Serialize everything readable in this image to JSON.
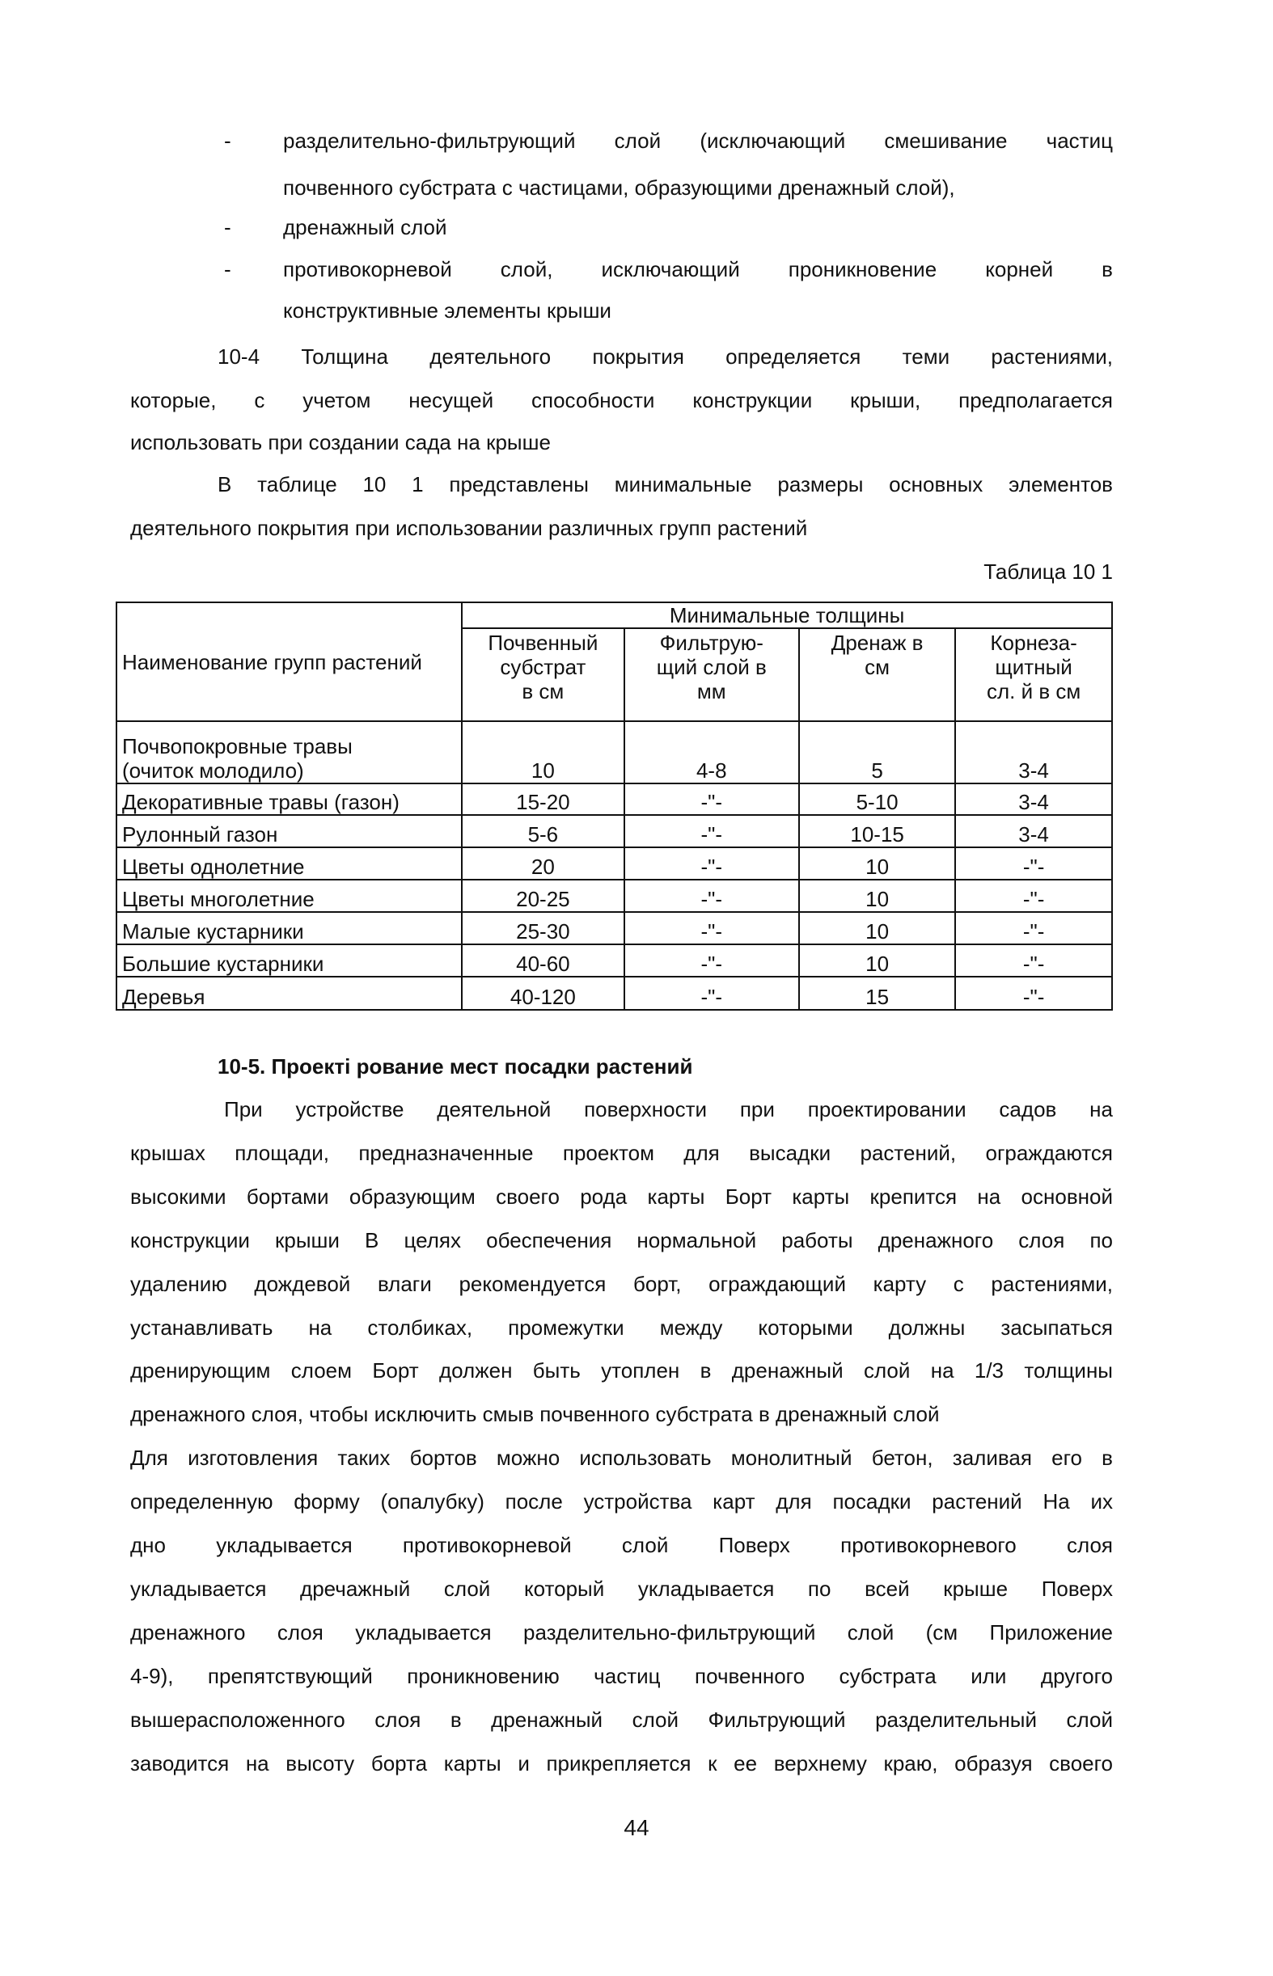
{
  "bullets": [
    {
      "lines": [
        "разделительно-фильтрующий слой (исключающий смешивание частиц",
        "почвенного субстрата с частицами, образующими дренажный слой),"
      ]
    },
    {
      "lines": [
        "дренажный слой"
      ]
    },
    {
      "lines": [
        "противокорневой слой, исключающий проникновение корней в",
        "конструктивные элементы крыши"
      ]
    }
  ],
  "bullet_marker": "-",
  "para_10_4": [
    "10-4 Толщина деятельного покрытия определяется теми растениями,",
    "которые, с учетом несущей способности конструкции крыши, предполагается",
    "использовать при создании сада на крыше"
  ],
  "para_table_intro": [
    "В таблице 10 1 представлены минимальные размеры основных элементов",
    "деятельного покрытия при использовании различных групп растений"
  ],
  "table": {
    "caption": "Таблица 10 1",
    "group_header": "Минимальные толщины",
    "headers": [
      "Наименование групп растений",
      "Почвенный субстрат в см",
      "Фильтрую-щий слой в мм",
      "Дренаж в см",
      "Корнеза-щитный слой в см"
    ],
    "header_lines": [
      [
        "Наименование групп растений"
      ],
      [
        "Почвенный",
        "субстрат",
        "в см"
      ],
      [
        "Фильтрую-",
        "щий слой в",
        "мм"
      ],
      [
        "Дренаж в",
        "см"
      ],
      [
        "Корнеза-",
        "щитный",
        "сл. й в см"
      ]
    ],
    "rows": [
      {
        "name_lines": [
          "Почвопокровные травы",
          "(очиток молодило)"
        ],
        "cells": [
          "10",
          "4-8",
          "5",
          "3-4"
        ]
      },
      {
        "name_lines": [
          "Декоративные травы (газон)"
        ],
        "cells": [
          "15-20",
          "-\"-",
          "5-10",
          "3-4"
        ]
      },
      {
        "name_lines": [
          "Рулонный газон"
        ],
        "cells": [
          "5-6",
          "-\"-",
          "10-15",
          "3-4"
        ]
      },
      {
        "name_lines": [
          "Цветы однолетние"
        ],
        "cells": [
          "20",
          "-\"-",
          "10",
          "-\"-"
        ]
      },
      {
        "name_lines": [
          "Цветы многолетние"
        ],
        "cells": [
          "20-25",
          "-\"-",
          "10",
          "-\"-"
        ]
      },
      {
        "name_lines": [
          "Малые кустарники"
        ],
        "cells": [
          "25-30",
          "-\"-",
          "10",
          "-\"-"
        ]
      },
      {
        "name_lines": [
          "Большие кустарники"
        ],
        "cells": [
          "40-60",
          "-\"-",
          "10",
          "-\"-"
        ]
      },
      {
        "name_lines": [
          "Деревья"
        ],
        "cells": [
          "40-120",
          "-\"-",
          "15",
          "-\"-"
        ]
      }
    ]
  },
  "heading_10_5": "10-5. Проекті рование мест посадки растений",
  "para_10_5": [
    "При устройстве деятельной поверхности при проектировании садов на",
    "крышах площади, предназначенные проектом для высадки растений, ограждаются",
    "высокими бортами образующим своего рода карты Борт карты крепится на основной",
    "конструкции крыши В целях обеспечения нормальной работы дренажного слоя по",
    "удалению дождевой влаги рекомендуется борт, ограждающий карту с растениями,",
    "устанавливать на столбиках, промежутки между которыми должны засыпаться",
    "дренирующим слоем Борт должен быть утоплен в дренажный слой на 1/3 толщины",
    "дренажного слоя, чтобы исключить смыв почвенного субстрата в дренажный слой",
    "Для изготовления таких бортов можно использовать монолитный бетон, заливая его в",
    "определенную форму (опалубку) после устройства карт для посадки растений На их",
    "дно укладывается противокорневой слой Поверх противокорневого слоя",
    "укладывается дречажный слой который укладывается по всей крыше Поверх",
    "дренажного слоя укладывается разделительно-фильтрующий слой (см Приложение",
    "4-9), препятствующий проникновению частиц почвенного субстрата или другого",
    "вышерасположенного слоя в дренажный слой Фильтрующий разделительный слой",
    "заводится на высоту борта карты и прикрепляется к ее верхнему краю, образуя своего"
  ],
  "page_number": "44"
}
